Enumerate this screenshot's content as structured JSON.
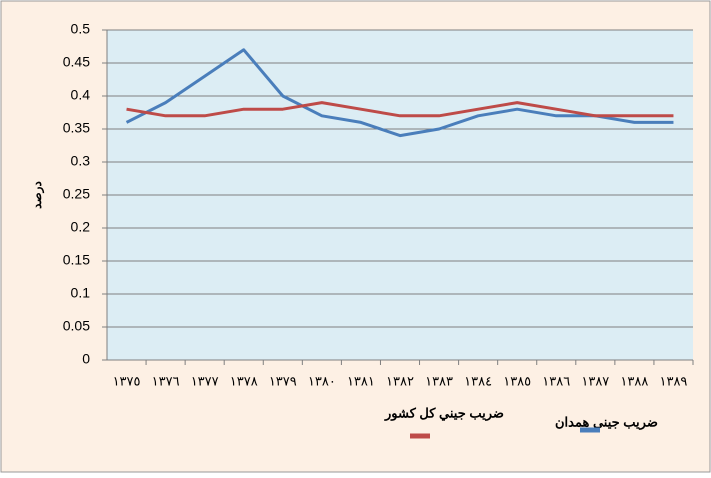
{
  "chart_data": {
    "type": "line",
    "y_label": "درصد",
    "categories": [
      "١٣٧٥",
      "١٣٧٦",
      "١٣٧٧",
      "١٣٧٨",
      "١٣٧٩",
      "١٣٨٠",
      "١٣٨١",
      "١٣٨٢",
      "١٣٨٣",
      "١٣٨٤",
      "١٣٨٥",
      "١٣٨٦",
      "١٣٨٧",
      "١٣٨٨",
      "١٣٨٩"
    ],
    "series": [
      {
        "name": "ضريب جيني همدان",
        "color": "#4a7ebb",
        "values": [
          0.36,
          0.39,
          0.43,
          0.47,
          0.4,
          0.37,
          0.36,
          0.34,
          0.35,
          0.37,
          0.38,
          0.37,
          0.37,
          0.36,
          0.36
        ]
      },
      {
        "name": "ضريب جيني كل كشور",
        "color": "#be4b48",
        "values": [
          0.38,
          0.37,
          0.37,
          0.38,
          0.38,
          0.39,
          0.38,
          0.37,
          0.37,
          0.38,
          0.39,
          0.38,
          0.37,
          0.37,
          0.37
        ]
      }
    ],
    "ylim": [
      0,
      0.5
    ],
    "yticks": [
      0,
      0.05,
      0.1,
      0.15,
      0.2,
      0.25,
      0.3,
      0.35,
      0.4,
      0.45,
      0.5
    ],
    "grid": true
  }
}
